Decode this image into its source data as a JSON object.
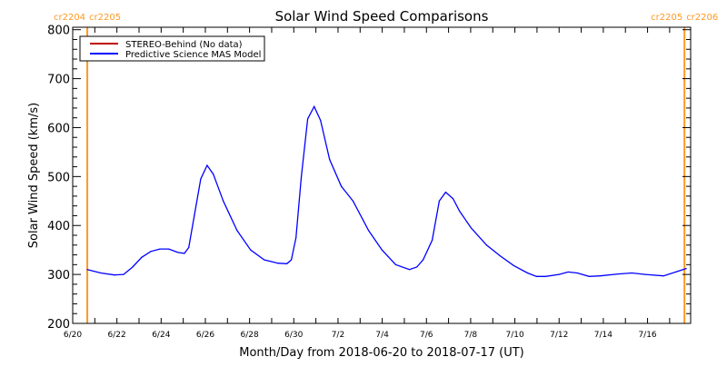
{
  "chart_data": {
    "type": "line",
    "title": "Solar Wind Speed Comparisons",
    "xlabel": "Month/Day from 2018-06-20 to 2018-07-17 (UT)",
    "ylabel": "Solar Wind Speed (km/s)",
    "xlim_days": [
      0,
      27.95
    ],
    "ylim": [
      200,
      805
    ],
    "y_ticks": [
      200,
      300,
      400,
      500,
      600,
      700,
      800
    ],
    "x_tick_labels": [
      {
        "day": 0,
        "label": "6/20"
      },
      {
        "day": 2,
        "label": "6/22"
      },
      {
        "day": 4,
        "label": "6/24"
      },
      {
        "day": 6,
        "label": "6/26"
      },
      {
        "day": 8,
        "label": "6/28"
      },
      {
        "day": 10,
        "label": "6/30"
      },
      {
        "day": 12,
        "label": "7/2"
      },
      {
        "day": 14,
        "label": "7/4"
      },
      {
        "day": 16,
        "label": "7/6"
      },
      {
        "day": 18,
        "label": "7/8"
      },
      {
        "day": 20,
        "label": "7/10"
      },
      {
        "day": 22,
        "label": "7/12"
      },
      {
        "day": 24,
        "label": "7/14"
      },
      {
        "day": 26,
        "label": "7/16"
      }
    ],
    "legend": {
      "placement": "top-left",
      "entries": [
        {
          "label": "STEREO-Behind (No data)",
          "color": "#c00000"
        },
        {
          "label": "Predictive Science MAS Model",
          "color": "#0000ff"
        }
      ]
    },
    "carrington_markers": [
      {
        "day": 0.66,
        "left_label": "cr2204",
        "right_label": "cr2205"
      },
      {
        "day": 27.67,
        "left_label": "cr2205",
        "right_label": "cr2206"
      }
    ],
    "marker_color": "#ff9922",
    "series": [
      {
        "name": "Predictive Science MAS Model",
        "color": "#0000ff",
        "x_days": [
          0.66,
          1.27,
          1.89,
          2.3,
          2.71,
          3.12,
          3.53,
          3.94,
          4.35,
          4.76,
          5.05,
          5.25,
          5.5,
          5.79,
          6.08,
          6.36,
          6.81,
          7.43,
          8.05,
          8.66,
          9.28,
          9.69,
          9.89,
          10.1,
          10.34,
          10.63,
          10.92,
          11.21,
          11.62,
          12.15,
          12.68,
          13.38,
          13.99,
          14.61,
          15.23,
          15.56,
          15.85,
          16.26,
          16.58,
          16.87,
          17.2,
          17.49,
          18.02,
          18.72,
          19.33,
          19.95,
          20.57,
          20.98,
          21.39,
          22.0,
          22.41,
          22.82,
          23.36,
          23.85,
          24.67,
          25.29,
          25.9,
          26.72,
          27.34,
          27.75
        ],
        "values": [
          310,
          303,
          299,
          300,
          315,
          335,
          347,
          352,
          352,
          345,
          343,
          355,
          420,
          495,
          523,
          505,
          450,
          390,
          350,
          330,
          323,
          322,
          330,
          375,
          500,
          618,
          643,
          615,
          535,
          480,
          450,
          390,
          350,
          320,
          310,
          315,
          330,
          370,
          450,
          468,
          455,
          430,
          395,
          360,
          338,
          318,
          303,
          296,
          296,
          300,
          305,
          303,
          296,
          297,
          301,
          303,
          300,
          297,
          306,
          312
        ]
      },
      {
        "name": "STEREO-Behind (No data)",
        "color": "#c00000",
        "x_days": [],
        "values": []
      }
    ]
  }
}
